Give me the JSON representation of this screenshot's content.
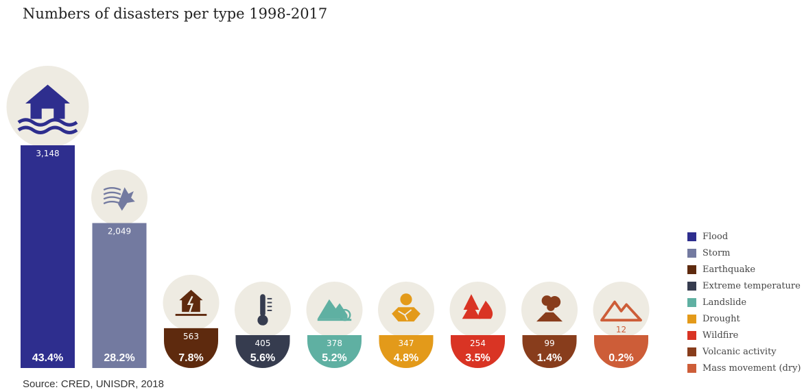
{
  "chart_data": {
    "type": "bar",
    "title": "Numbers of disasters per type 1998-2017",
    "source": "Source: CRED, UNISDR, 2018",
    "categories": [
      "Flood",
      "Storm",
      "Earthquake",
      "Extreme temperature",
      "Landslide",
      "Drought",
      "Wildfire",
      "Volcanic activity",
      "Mass movement (dry)"
    ],
    "values": [
      3148,
      2049,
      563,
      405,
      378,
      347,
      254,
      99,
      12
    ],
    "value_labels": [
      "3,148",
      "2,049",
      "563",
      "405",
      "378",
      "347",
      "254",
      "99",
      "12"
    ],
    "percentages": [
      "43.4%",
      "28.2%",
      "7.8%",
      "5.6%",
      "5.2%",
      "4.8%",
      "3.5%",
      "1.4%",
      "0.2%"
    ],
    "colors": [
      "#2e2e8e",
      "#737aa0",
      "#5e2a0e",
      "#363c4f",
      "#5fb0a2",
      "#e39a1a",
      "#d93424",
      "#883d1c",
      "#cd5d38"
    ],
    "icons": [
      "flooded-house-icon",
      "storm-wind-icon",
      "earthquake-house-icon",
      "thermometer-icon",
      "landslide-icon",
      "drought-icon",
      "wildfire-icon",
      "volcano-icon",
      "mountain-icon"
    ],
    "legend": {
      "position": "right",
      "entries": [
        "Flood",
        "Storm",
        "Earthquake",
        "Extreme temperature",
        "Landslide",
        "Drought",
        "Wildfire",
        "Volcanic activity",
        "Mass movement (dry)"
      ]
    },
    "grid": false
  }
}
